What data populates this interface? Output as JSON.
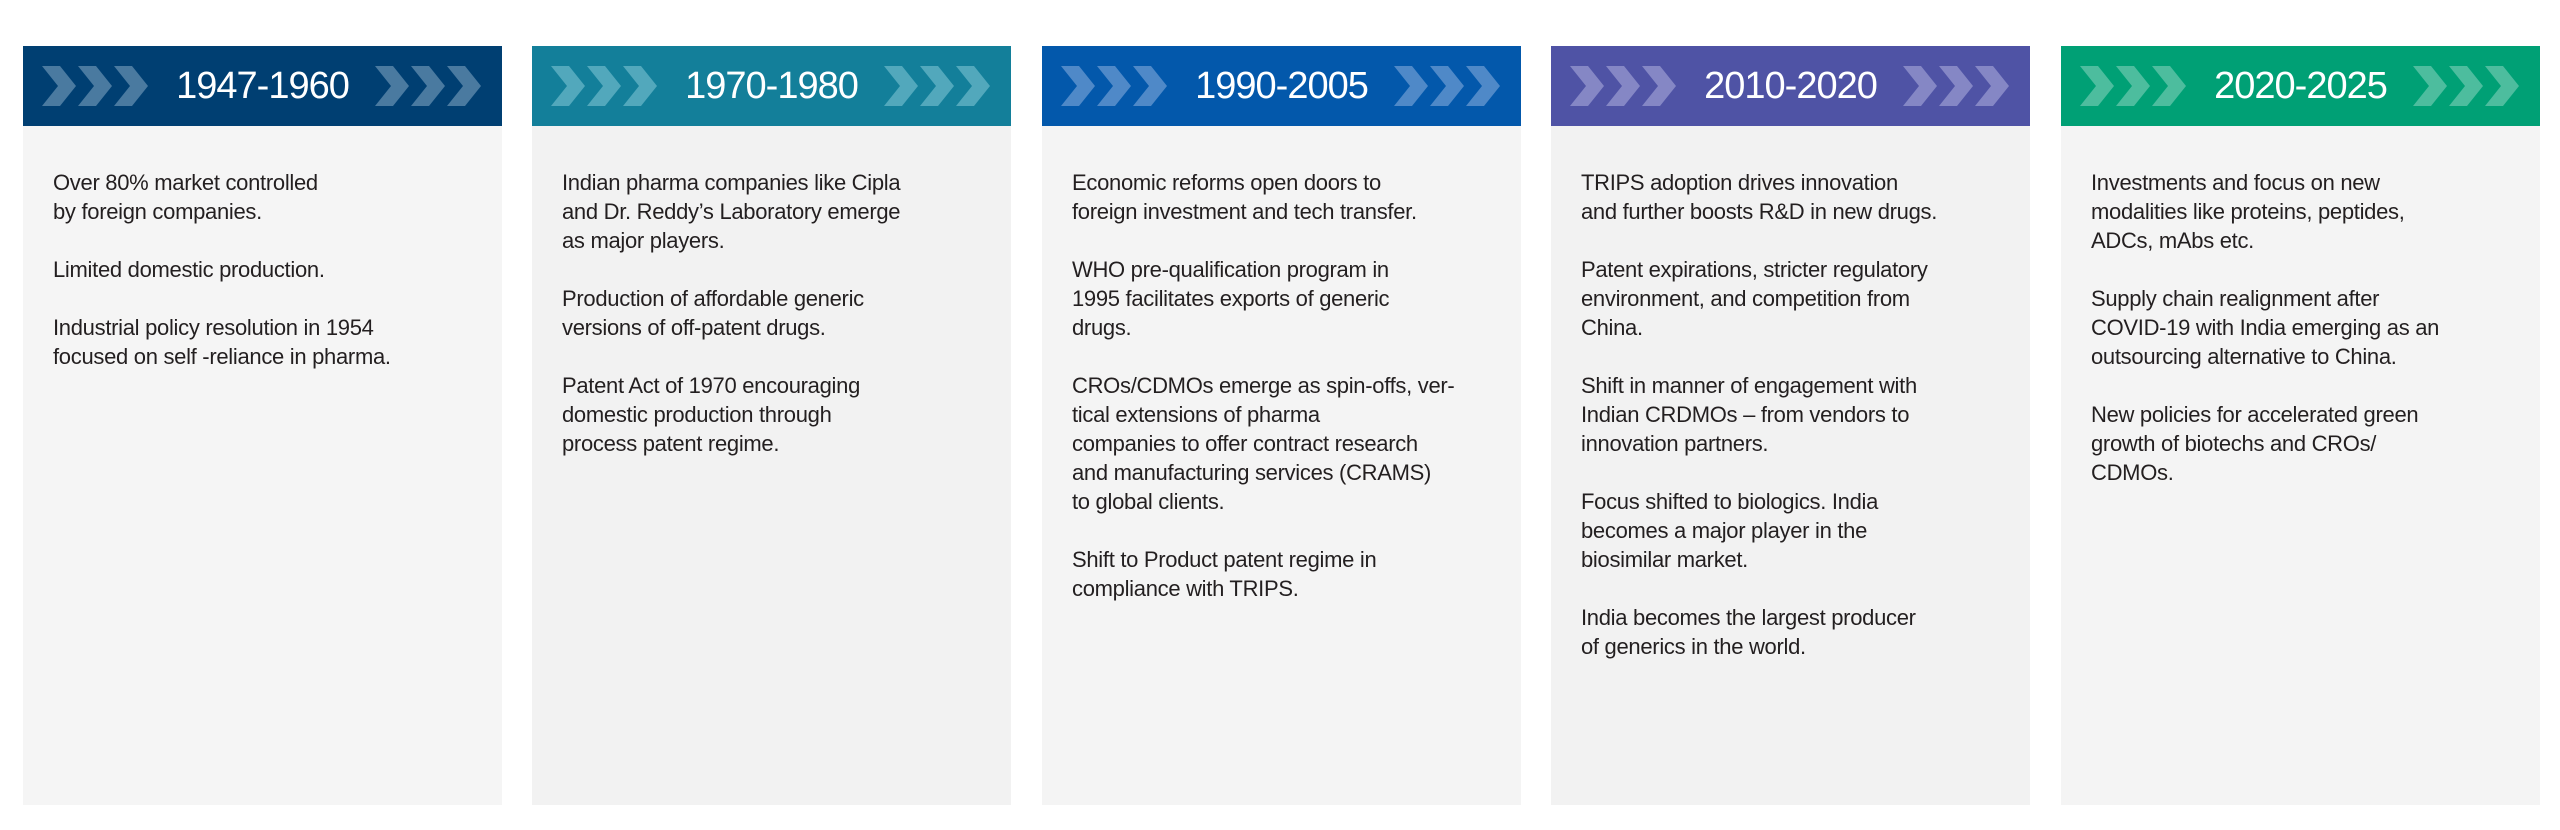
{
  "periods": [
    {
      "title": "1947-1960",
      "color": "#003f72",
      "chevron_color": "#4a7aa0",
      "body_bg": "#f5f5f5",
      "paragraphs": [
        "Over 80% market controlled\nby foreign companies.",
        "Limited domestic production.",
        "Industrial policy resolution in 1954\nfocused on self -reliance in pharma."
      ]
    },
    {
      "title": "1970-1980",
      "color": "#137f9a",
      "chevron_color": "#52a8bc",
      "body_bg": "#f2f2f2",
      "paragraphs": [
        "Indian pharma companies like Cipla\nand Dr. Reddy’s Laboratory emerge\nas major players.",
        "Production of affordable generic\nversions of off-patent drugs.",
        "Patent Act of 1970 encouraging\ndomestic production through\nprocess patent regime."
      ]
    },
    {
      "title": "1990-2005",
      "color": "#0358ab",
      "chevron_color": "#4f89c8",
      "body_bg": "#f4f4f4",
      "paragraphs": [
        "Economic reforms open doors to\nforeign investment and tech transfer.",
        "WHO pre-qualification program in\n1995 facilitates exports of generic\ndrugs.",
        "CROs/CDMOs emerge as spin-offs, ver-\ntical extensions of pharma\ncompanies to offer contract research\nand manufacturing services (CRAMS)\nto global clients.",
        "Shift to Product patent regime in\ncompliance with TRIPS."
      ]
    },
    {
      "title": "2010-2020",
      "color": "#4f53a5",
      "chevron_color": "#8587c5",
      "body_bg": "#f2f2f2",
      "paragraphs": [
        "TRIPS adoption drives innovation\nand further boosts R&D in new drugs.",
        "Patent expirations, stricter regulatory\nenvironment, and competition from\nChina.",
        "Shift in manner of engagement with\nIndian CRDMOs – from vendors to\ninnovation partners.",
        "Focus shifted to biologics. India\nbecomes a major player in the\nbiosimilar market.",
        "India becomes the largest producer\nof generics in the world."
      ]
    },
    {
      "title": "2020-2025",
      "color": "#00a075",
      "chevron_color": "#4dbd9e",
      "body_bg": "#f4f4f4",
      "paragraphs": [
        "Investments and focus on new\nmodalities like proteins, peptides,\nADCs, mAbs etc.",
        "Supply chain realignment after\nCOVID-19 with India emerging as an\noutsourcing alternative to China.",
        "New policies for accelerated green\ngrowth of biotechs and CROs/\nCDMOs."
      ]
    }
  ]
}
